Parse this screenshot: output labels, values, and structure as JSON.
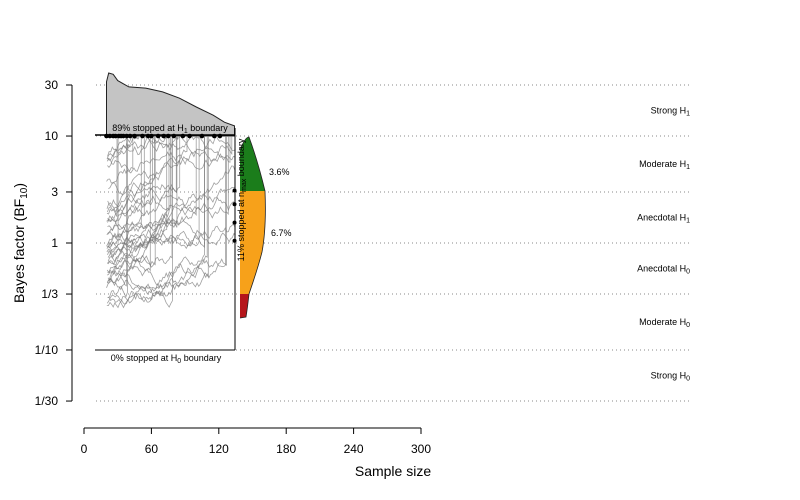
{
  "chart_data": {
    "type": "sequential-bayes-factor",
    "xlabel": "Sample size",
    "ylabel": "Bayes factor (BF",
    "ylabel_sub": "10",
    "ylabel_close": ")",
    "xlim": [
      0,
      300
    ],
    "x_ticks": [
      0,
      60,
      120,
      180,
      240,
      300
    ],
    "y_ticks": [
      {
        "value": 30,
        "label": "30"
      },
      {
        "value": 10,
        "label": "10"
      },
      {
        "value": 3,
        "label": "3"
      },
      {
        "value": 1,
        "label": "1"
      },
      {
        "value": 0.3333,
        "label": "1/3"
      },
      {
        "value": 0.1,
        "label": "1/10"
      },
      {
        "value": 0.0333,
        "label": "1/30"
      }
    ],
    "evidence_categories": [
      {
        "main": "Strong H",
        "sub": "1",
        "bf": 17.32
      },
      {
        "main": "Moderate H",
        "sub": "1",
        "bf": 5.48
      },
      {
        "main": "Anecdotal H",
        "sub": "1",
        "bf": 1.73
      },
      {
        "main": "Anecdotal H",
        "sub": "0",
        "bf": 0.577
      },
      {
        "main": "Moderate H",
        "sub": "0",
        "bf": 0.183
      },
      {
        "main": "Strong H",
        "sub": "0",
        "bf": 0.0577
      }
    ],
    "h1_boundary": {
      "bf": 10,
      "label_pre": "89% stopped at H",
      "label_sub": "1",
      "label_post": " boundary",
      "percent": 89
    },
    "h0_boundary": {
      "bf": 0.1,
      "label_pre": "0% stopped at H",
      "label_sub": "0",
      "label_post": " boundary",
      "percent": 0
    },
    "nmax": {
      "n": 134,
      "label_pre": "11% stopped at n",
      "label_sub": "max",
      "label_post": " boundary",
      "percent": 11
    },
    "nmax_outcomes": [
      {
        "label": "3.6%",
        "category": "Moderate H1",
        "color": "#1b7d1b"
      },
      {
        "label": "6.7%",
        "category": "Anecdotal H1 / H0",
        "color": "#f7a11a"
      },
      {
        "label": "",
        "category": "Moderate H0",
        "color": "#b5161b"
      }
    ],
    "h1_stop_points_n": [
      20,
      23,
      26,
      28,
      31,
      33,
      35,
      38,
      41,
      45,
      52,
      57,
      60,
      66,
      71,
      75,
      80,
      88,
      94,
      105,
      116,
      121
    ],
    "nmax_endpoints_bf": [
      3.1,
      2.3,
      1.55,
      1.05
    ],
    "top_density": [
      {
        "n": 20,
        "h": 0.86
      },
      {
        "n": 22,
        "h": 1.0
      },
      {
        "n": 26,
        "h": 0.98
      },
      {
        "n": 30,
        "h": 0.88
      },
      {
        "n": 40,
        "h": 0.78
      },
      {
        "n": 55,
        "h": 0.76
      },
      {
        "n": 70,
        "h": 0.7
      },
      {
        "n": 85,
        "h": 0.6
      },
      {
        "n": 100,
        "h": 0.46
      },
      {
        "n": 115,
        "h": 0.33
      },
      {
        "n": 125,
        "h": 0.22
      },
      {
        "n": 134,
        "h": 0.16
      }
    ],
    "trajectory_count": 40,
    "trajectory_color": "#777777"
  }
}
